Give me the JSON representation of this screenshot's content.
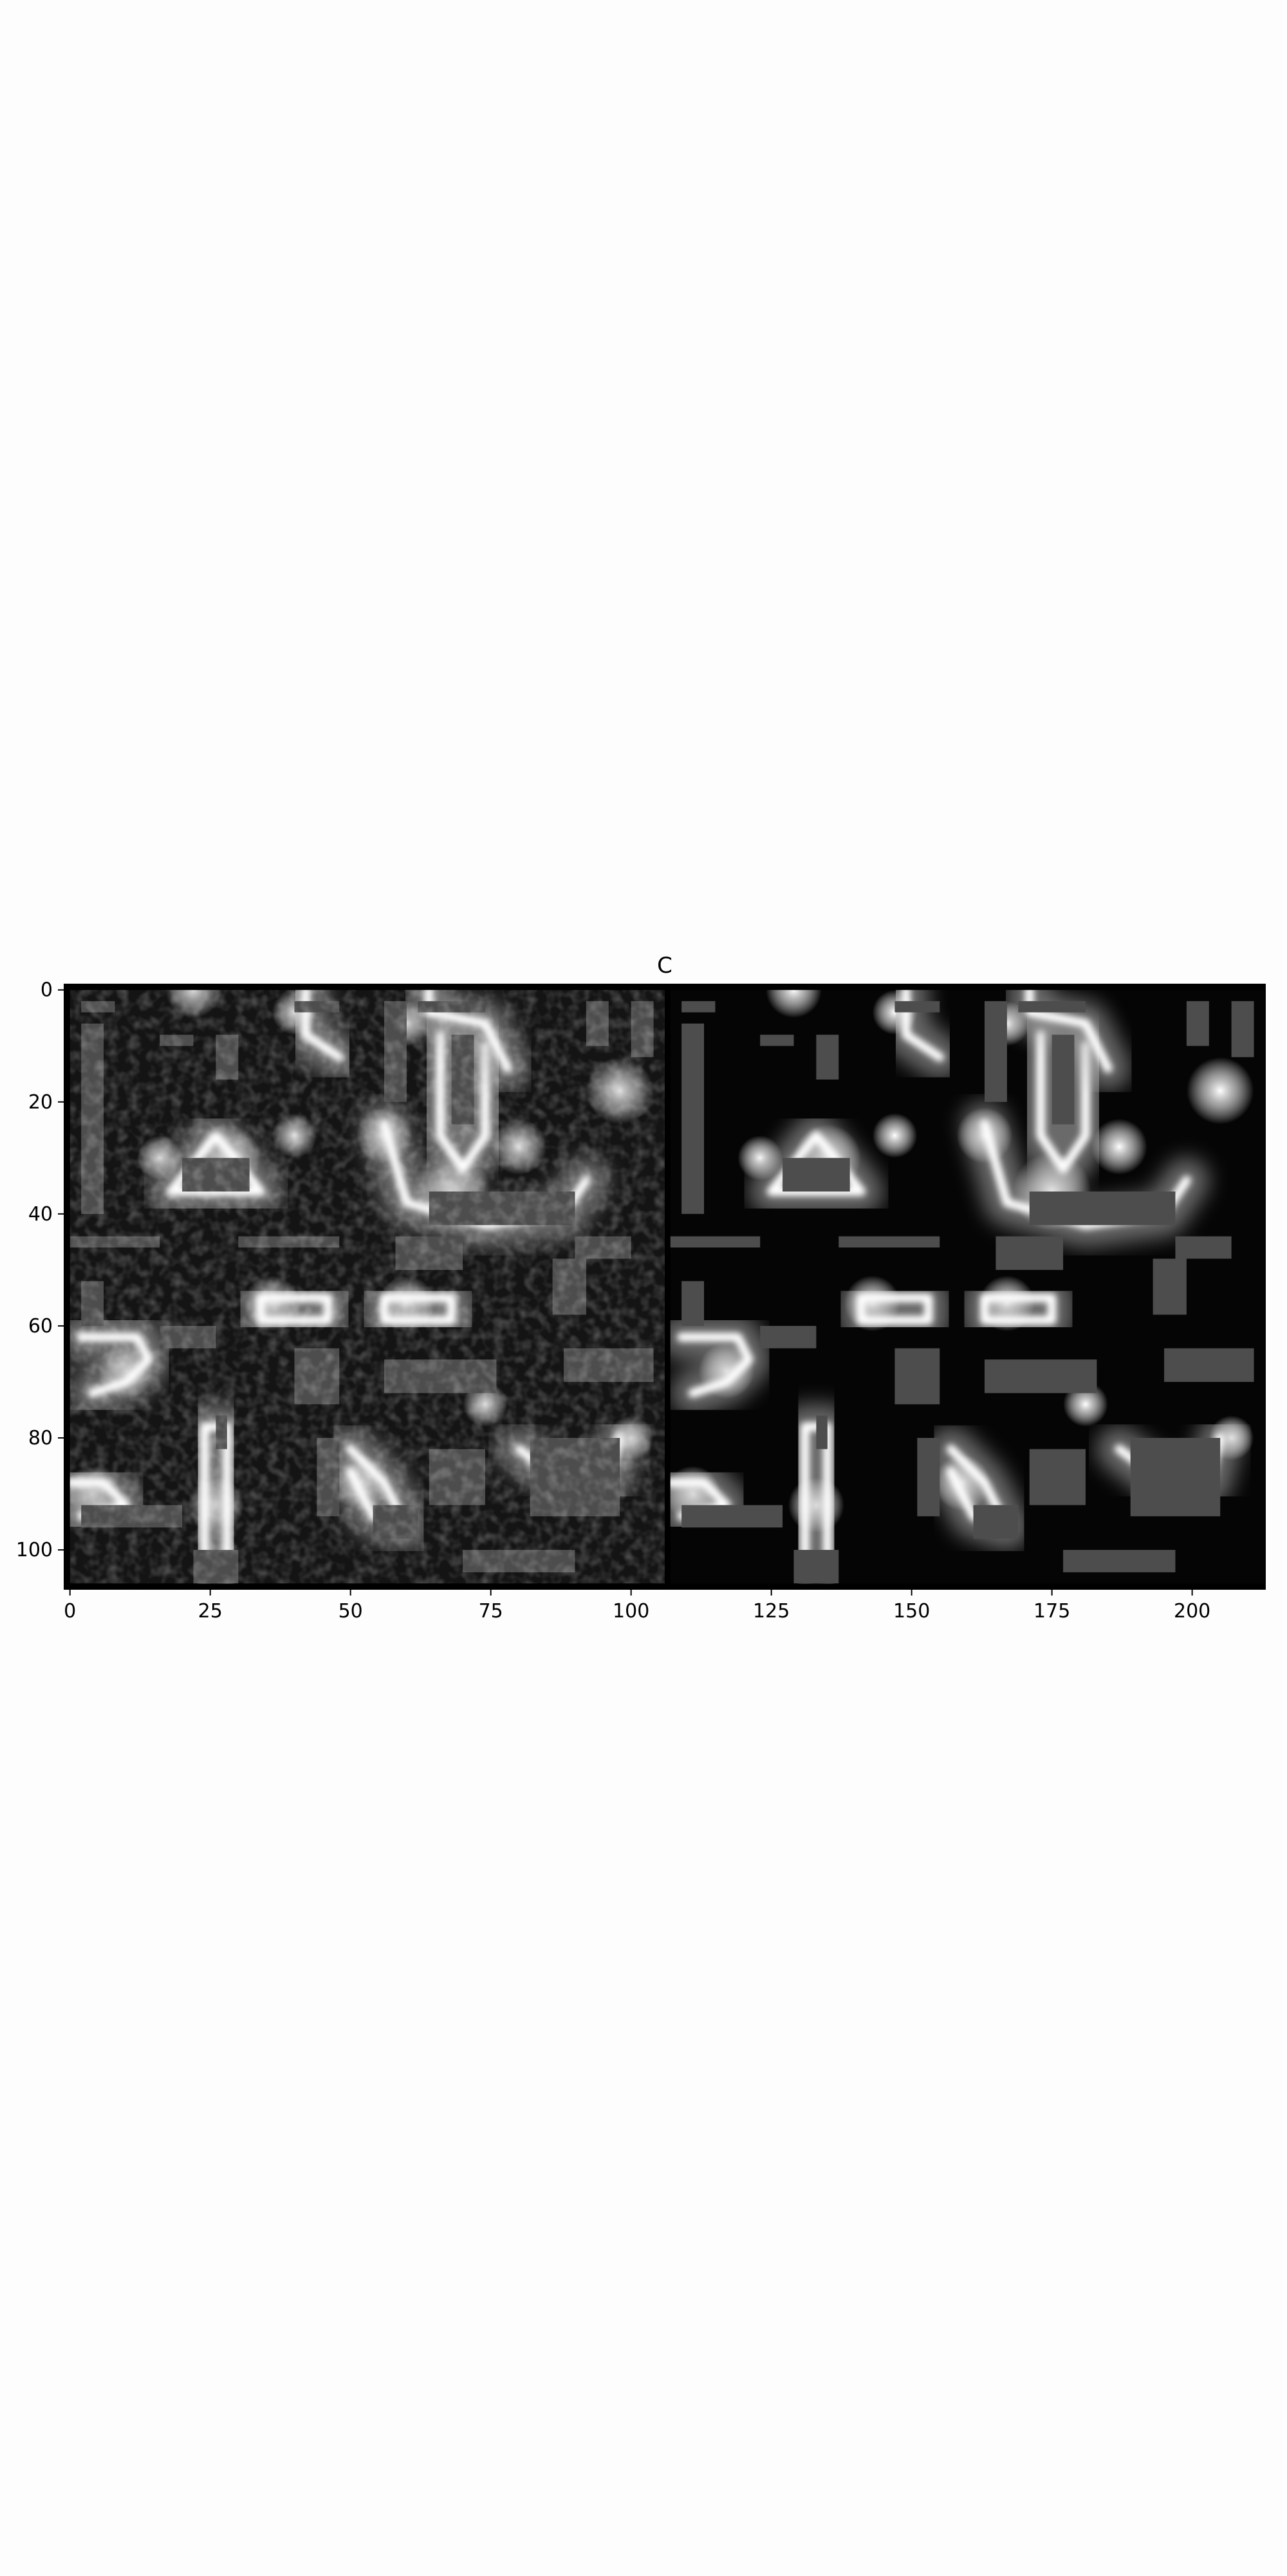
{
  "chart_data": {
    "type": "heatmap",
    "title": "C",
    "xlabel": "",
    "ylabel": "",
    "xlim": [
      -1,
      213
    ],
    "ylim": [
      107,
      -1
    ],
    "xticks": [
      0,
      25,
      50,
      75,
      100,
      125,
      150,
      175,
      200
    ],
    "yticks": [
      0,
      20,
      40,
      60,
      80,
      100
    ],
    "colormap": "gray",
    "panels": [
      {
        "name": "noisy",
        "x_range": [
          0,
          106
        ],
        "y_range": [
          0,
          106
        ],
        "style": "noisy",
        "walls": [
          {
            "x": [
              2,
              8
            ],
            "y": [
              2,
              4
            ]
          },
          {
            "x": [
              40,
              48
            ],
            "y": [
              2,
              4
            ]
          },
          {
            "x": [
              62,
              74
            ],
            "y": [
              2,
              4
            ]
          },
          {
            "x": [
              2,
              6
            ],
            "y": [
              6,
              40
            ]
          },
          {
            "x": [
              16,
              22
            ],
            "y": [
              8,
              10
            ]
          },
          {
            "x": [
              26,
              30
            ],
            "y": [
              8,
              16
            ]
          },
          {
            "x": [
              56,
              60
            ],
            "y": [
              2,
              20
            ]
          },
          {
            "x": [
              68,
              72
            ],
            "y": [
              8,
              24
            ]
          },
          {
            "x": [
              92,
              96
            ],
            "y": [
              2,
              10
            ]
          },
          {
            "x": [
              100,
              104
            ],
            "y": [
              2,
              12
            ]
          },
          {
            "x": [
              20,
              32
            ],
            "y": [
              30,
              36
            ]
          },
          {
            "x": [
              64,
              90
            ],
            "y": [
              36,
              42
            ]
          },
          {
            "x": [
              0,
              16
            ],
            "y": [
              44,
              46
            ]
          },
          {
            "x": [
              30,
              48
            ],
            "y": [
              44,
              46
            ]
          },
          {
            "x": [
              58,
              70
            ],
            "y": [
              44,
              50
            ]
          },
          {
            "x": [
              90,
              100
            ],
            "y": [
              44,
              48
            ]
          },
          {
            "x": [
              86,
              92
            ],
            "y": [
              48,
              58
            ]
          },
          {
            "x": [
              2,
              6
            ],
            "y": [
              52,
              60
            ]
          },
          {
            "x": [
              16,
              26
            ],
            "y": [
              60,
              64
            ]
          },
          {
            "x": [
              40,
              48
            ],
            "y": [
              64,
              74
            ]
          },
          {
            "x": [
              56,
              76
            ],
            "y": [
              66,
              72
            ]
          },
          {
            "x": [
              88,
              104
            ],
            "y": [
              64,
              70
            ]
          },
          {
            "x": [
              26,
              28
            ],
            "y": [
              76,
              82
            ]
          },
          {
            "x": [
              44,
              48
            ],
            "y": [
              80,
              94
            ]
          },
          {
            "x": [
              64,
              74
            ],
            "y": [
              82,
              92
            ]
          },
          {
            "x": [
              82,
              98
            ],
            "y": [
              80,
              94
            ]
          },
          {
            "x": [
              2,
              20
            ],
            "y": [
              92,
              96
            ]
          },
          {
            "x": [
              54,
              62
            ],
            "y": [
              92,
              98
            ]
          },
          {
            "x": [
              70,
              90
            ],
            "y": [
              100,
              104
            ]
          },
          {
            "x": [
              22,
              30
            ],
            "y": [
              100,
              106
            ]
          }
        ],
        "glows": [
          {
            "x": 22,
            "y": 0,
            "r": 5
          },
          {
            "x": 40,
            "y": 4,
            "r": 4
          },
          {
            "x": 60,
            "y": 6,
            "r": 4
          },
          {
            "x": 98,
            "y": 18,
            "r": 6
          },
          {
            "x": 16,
            "y": 30,
            "r": 4
          },
          {
            "x": 28,
            "y": 30,
            "r": 6
          },
          {
            "x": 40,
            "y": 26,
            "r": 4
          },
          {
            "x": 56,
            "y": 26,
            "r": 5
          },
          {
            "x": 68,
            "y": 36,
            "r": 7
          },
          {
            "x": 80,
            "y": 28,
            "r": 5
          },
          {
            "x": 36,
            "y": 56,
            "r": 5
          },
          {
            "x": 60,
            "y": 56,
            "r": 5
          },
          {
            "x": 10,
            "y": 68,
            "r": 5
          },
          {
            "x": 74,
            "y": 74,
            "r": 4
          },
          {
            "x": 4,
            "y": 90,
            "r": 5
          },
          {
            "x": 26,
            "y": 92,
            "r": 5
          },
          {
            "x": 52,
            "y": 88,
            "r": 5
          },
          {
            "x": 88,
            "y": 86,
            "r": 6
          },
          {
            "x": 100,
            "y": 80,
            "r": 4
          }
        ]
      },
      {
        "name": "clean",
        "x_range": [
          107,
          213
        ],
        "y_range": [
          0,
          106
        ],
        "style": "clean",
        "walls": [
          {
            "x": [
              109,
              115
            ],
            "y": [
              2,
              4
            ]
          },
          {
            "x": [
              147,
              155
            ],
            "y": [
              2,
              4
            ]
          },
          {
            "x": [
              169,
              181
            ],
            "y": [
              2,
              4
            ]
          },
          {
            "x": [
              109,
              113
            ],
            "y": [
              6,
              40
            ]
          },
          {
            "x": [
              123,
              129
            ],
            "y": [
              8,
              10
            ]
          },
          {
            "x": [
              133,
              137
            ],
            "y": [
              8,
              16
            ]
          },
          {
            "x": [
              163,
              167
            ],
            "y": [
              2,
              20
            ]
          },
          {
            "x": [
              175,
              179
            ],
            "y": [
              8,
              24
            ]
          },
          {
            "x": [
              199,
              203
            ],
            "y": [
              2,
              10
            ]
          },
          {
            "x": [
              207,
              211
            ],
            "y": [
              2,
              12
            ]
          },
          {
            "x": [
              127,
              139
            ],
            "y": [
              30,
              36
            ]
          },
          {
            "x": [
              171,
              197
            ],
            "y": [
              36,
              42
            ]
          },
          {
            "x": [
              107,
              123
            ],
            "y": [
              44,
              46
            ]
          },
          {
            "x": [
              137,
              155
            ],
            "y": [
              44,
              46
            ]
          },
          {
            "x": [
              165,
              177
            ],
            "y": [
              44,
              50
            ]
          },
          {
            "x": [
              197,
              207
            ],
            "y": [
              44,
              48
            ]
          },
          {
            "x": [
              193,
              199
            ],
            "y": [
              48,
              58
            ]
          },
          {
            "x": [
              109,
              113
            ],
            "y": [
              52,
              60
            ]
          },
          {
            "x": [
              123,
              133
            ],
            "y": [
              60,
              64
            ]
          },
          {
            "x": [
              147,
              155
            ],
            "y": [
              64,
              74
            ]
          },
          {
            "x": [
              163,
              183
            ],
            "y": [
              66,
              72
            ]
          },
          {
            "x": [
              195,
              211
            ],
            "y": [
              64,
              70
            ]
          },
          {
            "x": [
              133,
              135
            ],
            "y": [
              76,
              82
            ]
          },
          {
            "x": [
              151,
              155
            ],
            "y": [
              80,
              94
            ]
          },
          {
            "x": [
              171,
              181
            ],
            "y": [
              82,
              92
            ]
          },
          {
            "x": [
              189,
              205
            ],
            "y": [
              80,
              94
            ]
          },
          {
            "x": [
              109,
              127
            ],
            "y": [
              92,
              96
            ]
          },
          {
            "x": [
              161,
              169
            ],
            "y": [
              92,
              98
            ]
          },
          {
            "x": [
              177,
              197
            ],
            "y": [
              100,
              104
            ]
          },
          {
            "x": [
              129,
              137
            ],
            "y": [
              100,
              106
            ]
          }
        ],
        "glows": [
          {
            "x": 129,
            "y": 0,
            "r": 5
          },
          {
            "x": 147,
            "y": 4,
            "r": 4
          },
          {
            "x": 167,
            "y": 6,
            "r": 4
          },
          {
            "x": 205,
            "y": 18,
            "r": 6
          },
          {
            "x": 123,
            "y": 30,
            "r": 4
          },
          {
            "x": 135,
            "y": 30,
            "r": 6
          },
          {
            "x": 147,
            "y": 26,
            "r": 4
          },
          {
            "x": 163,
            "y": 26,
            "r": 5
          },
          {
            "x": 175,
            "y": 36,
            "r": 7
          },
          {
            "x": 187,
            "y": 28,
            "r": 5
          },
          {
            "x": 143,
            "y": 56,
            "r": 5
          },
          {
            "x": 167,
            "y": 56,
            "r": 5
          },
          {
            "x": 117,
            "y": 68,
            "r": 5
          },
          {
            "x": 181,
            "y": 74,
            "r": 4
          },
          {
            "x": 111,
            "y": 90,
            "r": 5
          },
          {
            "x": 133,
            "y": 92,
            "r": 5
          },
          {
            "x": 159,
            "y": 88,
            "r": 5
          },
          {
            "x": 195,
            "y": 86,
            "r": 6
          },
          {
            "x": 207,
            "y": 80,
            "r": 4
          }
        ]
      }
    ],
    "strokes": [
      {
        "pts": [
          [
            2,
            62
          ],
          [
            12,
            62
          ],
          [
            14,
            66
          ],
          [
            10,
            70
          ],
          [
            4,
            72
          ]
        ]
      },
      {
        "pts": [
          [
            34,
            55
          ],
          [
            46,
            55
          ],
          [
            46,
            59
          ],
          [
            34,
            59
          ],
          [
            34,
            55
          ]
        ]
      },
      {
        "pts": [
          [
            56,
            55
          ],
          [
            68,
            55
          ],
          [
            68,
            59
          ],
          [
            56,
            59
          ],
          [
            56,
            55
          ]
        ]
      },
      {
        "pts": [
          [
            0,
            88
          ],
          [
            6,
            88
          ],
          [
            10,
            92
          ],
          [
            2,
            94
          ]
        ]
      },
      {
        "pts": [
          [
            24,
            106
          ],
          [
            24,
            78
          ],
          [
            28,
            78
          ],
          [
            28,
            106
          ]
        ]
      },
      {
        "pts": [
          [
            50,
            82
          ],
          [
            56,
            88
          ],
          [
            60,
            96
          ],
          [
            54,
            94
          ],
          [
            50,
            86
          ]
        ]
      },
      {
        "pts": [
          [
            18,
            36
          ],
          [
            26,
            26
          ],
          [
            34,
            36
          ],
          [
            18,
            36
          ]
        ]
      },
      {
        "pts": [
          [
            56,
            24
          ],
          [
            60,
            38
          ],
          [
            74,
            42
          ],
          [
            88,
            40
          ],
          [
            92,
            34
          ]
        ]
      },
      {
        "pts": [
          [
            66,
            8
          ],
          [
            66,
            26
          ],
          [
            70,
            32
          ],
          [
            74,
            26
          ],
          [
            74,
            10
          ]
        ]
      },
      {
        "pts": [
          [
            80,
            82
          ],
          [
            88,
            88
          ],
          [
            96,
            88
          ],
          [
            98,
            80
          ]
        ]
      },
      {
        "pts": [
          [
            42,
            0
          ],
          [
            42,
            8
          ],
          [
            48,
            12
          ]
        ]
      },
      {
        "pts": [
          [
            64,
            0
          ],
          [
            64,
            4
          ],
          [
            74,
            6
          ],
          [
            78,
            14
          ]
        ]
      }
    ]
  }
}
